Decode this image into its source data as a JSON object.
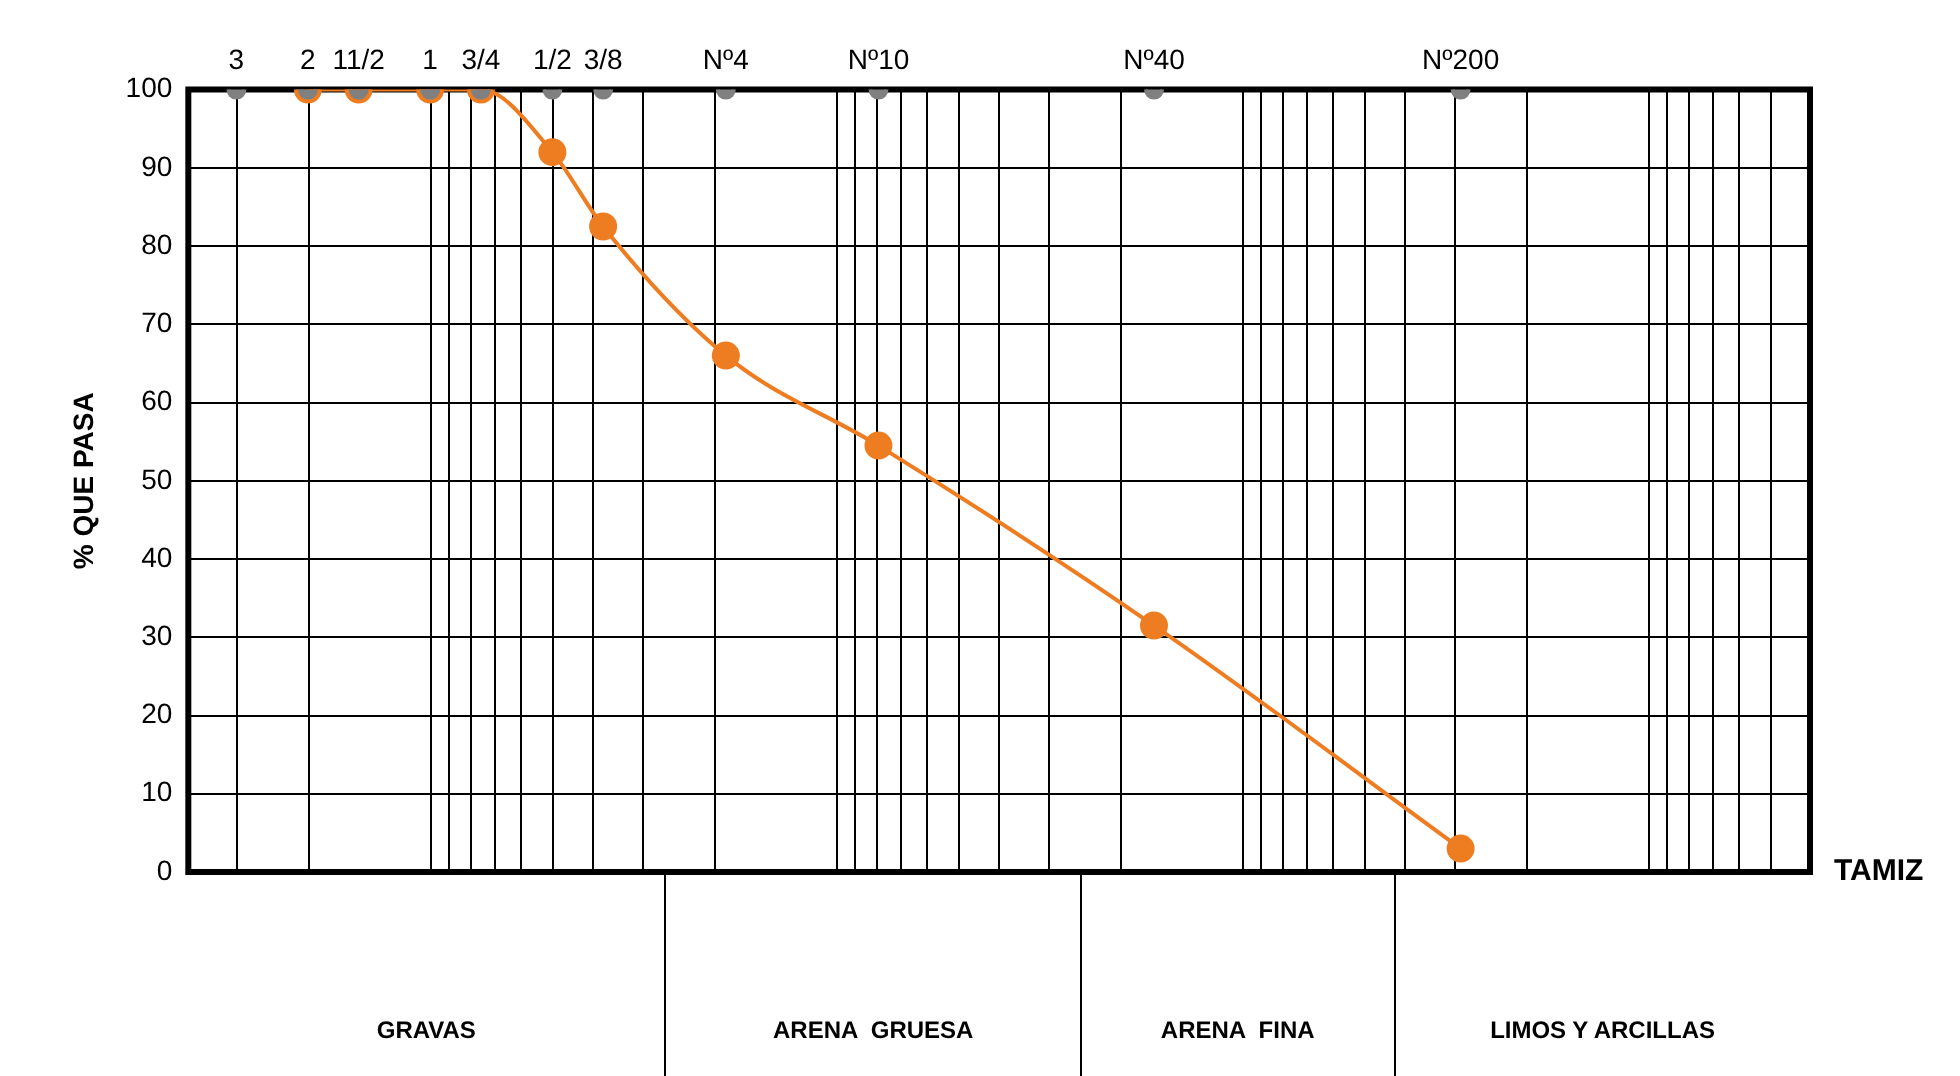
{
  "chart_data": {
    "type": "line",
    "xlabel": "TAMIZ",
    "ylabel": "% QUE PASA",
    "x": [
      2,
      1.5,
      1,
      0.75,
      0.5,
      0.375,
      0.187,
      0.0787,
      0.0165,
      0.0029
    ],
    "series": [
      {
        "type": "scatter",
        "color": "#808080",
        "x": [
          3,
          2,
          1.5,
          1,
          0.75,
          0.5,
          0.375,
          0.187,
          0.0787,
          0.0165,
          0.0029
        ],
        "values": [
          100,
          100,
          100,
          100,
          100,
          100,
          100,
          100,
          100,
          100,
          100
        ]
      },
      {
        "color": "#ee7d22",
        "values": [
          100,
          100,
          100,
          100,
          92,
          82.5,
          66,
          54.5,
          31.5,
          3
        ]
      }
    ],
    "log": "x",
    "xlim": [
      3.94,
      0.0004
    ],
    "xticks": [
      3,
      2,
      {
        "value": 1.5,
        "label": "11/2"
      },
      1,
      {
        "value": 0.75,
        "label": "3/4"
      },
      {
        "value": 0.5,
        "label": "1/2"
      },
      {
        "value": 0.375,
        "label": "3/8"
      },
      {
        "value": 0.187,
        "label": "Nº4"
      },
      {
        "value": 0.0787,
        "label": "Nº10"
      },
      {
        "value": 0.0165,
        "label": "Nº40"
      },
      {
        "value": 0.0029,
        "label": "Nº200"
      }
    ],
    "ylim": [
      0,
      100
    ],
    "yticks": [
      0,
      10,
      20,
      30,
      40,
      50,
      60,
      70,
      80,
      90,
      100
    ],
    "annotations": [
      "GRAVAS",
      "ARENA  GRUESA",
      "ARENA  FINA",
      "LIMOS Y ARCILLAS"
    ],
    "grid": true,
    "legend": false,
    "marker": "circle",
    "line_style": "solid"
  }
}
